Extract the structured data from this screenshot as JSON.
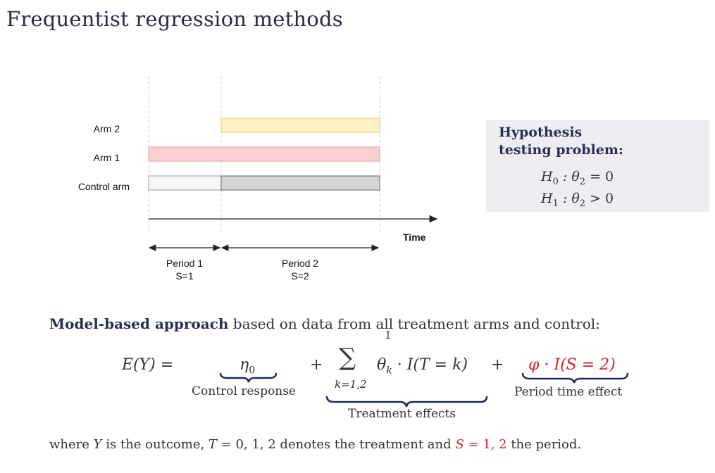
{
  "slide": {
    "title": "Frequentist regression methods"
  },
  "diagram": {
    "arms": [
      {
        "label": "Arm 2",
        "color": "#fff1c4",
        "border": "#f2c75a"
      },
      {
        "label": "Arm 1",
        "color": "#f8d0d2",
        "border": "#e99aa0"
      },
      {
        "label": "Control arm",
        "color_period1": "#f6f6f6",
        "color_period2": "#d4d4d4",
        "border": "#666666"
      }
    ],
    "time_label": "Time",
    "periods": [
      {
        "label": "Period 1",
        "sub": "S=1"
      },
      {
        "label": "Period 2",
        "sub": "S=2"
      }
    ]
  },
  "hypothesis": {
    "title_line1": "Hypothesis",
    "title_line2": "testing problem:",
    "h0_lhs": "H",
    "h0_sub": "0",
    "h0_rest": " : θ",
    "h0_theta_sub": "2",
    "h0_rhs": " = 0",
    "h1_lhs": "H",
    "h1_sub": "1",
    "h1_rest": " : θ",
    "h1_theta_sub": "2",
    "h1_rhs": " > 0"
  },
  "model": {
    "intro_bold": "Model-based approach",
    "intro_rest": " based on data from all treatment arms and control:",
    "lhs": "E(Y) =",
    "eta": "η",
    "eta_sub": "0",
    "plus1": "+",
    "sum_symbol": "∑",
    "sum_index": "k=1,2",
    "theta_term": "θ",
    "theta_sub": "k",
    "treatment_term": " · I(T = k)",
    "plus2": "+",
    "period_term": "φ · I(S = 2)",
    "control_response_label": "Control response",
    "treatment_effects_label": "Treatment effects",
    "period_effect_label": "Period time effect"
  },
  "footnote": {
    "part1": "where ",
    "Y": "Y",
    "part2": " is the outcome, ",
    "T_expr": "T",
    "part3": " = 0, 1, 2 denotes the treatment and ",
    "S_expr": "S",
    "S_values": " = 1, 2",
    "part4": " the period."
  },
  "colors": {
    "heading": "#2b2f55",
    "accent_red": "#d2232a",
    "brace_navy": "#1f2a5a"
  }
}
